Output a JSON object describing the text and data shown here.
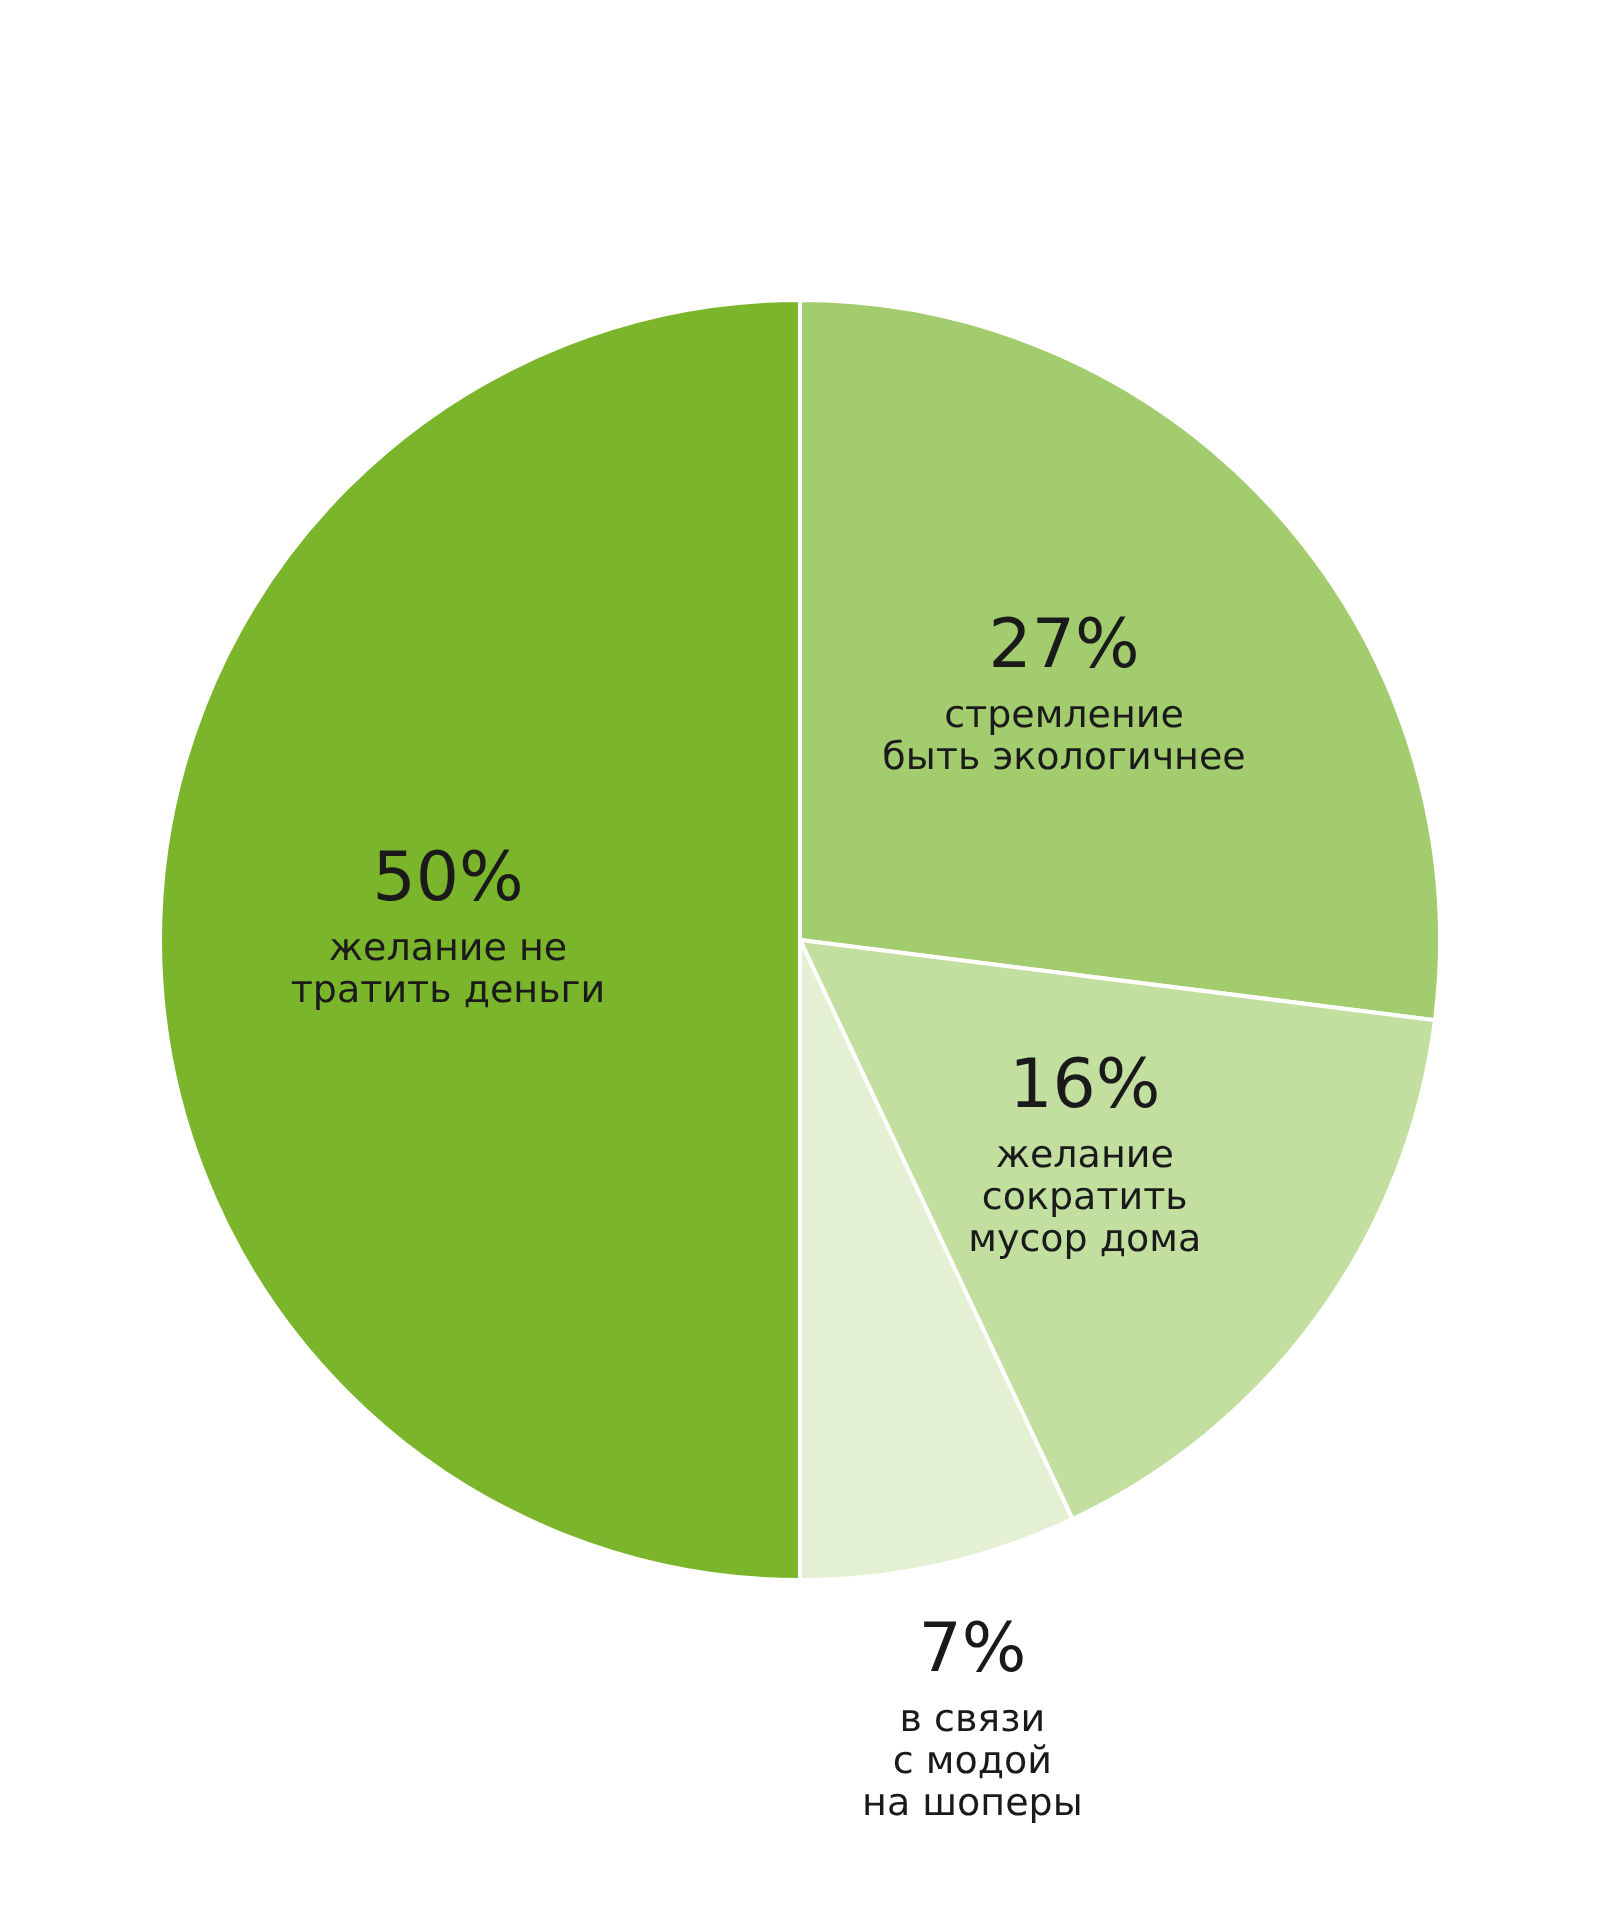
{
  "chart_data": {
    "type": "pie",
    "categories": [
      "стремление\nбыть экологичнее",
      "желание\nсократить\nмусор дома",
      "в связи\nс модой\nна шоперы",
      "желание не\nтратить деньги"
    ],
    "values": [
      27,
      16,
      7,
      50
    ],
    "value_labels": [
      "27%",
      "16%",
      "7%",
      "50%"
    ],
    "colors": [
      "#a3cc6e",
      "#c2dfa0",
      "#e4f0d4",
      "#7ab52c"
    ],
    "legend": false
  }
}
